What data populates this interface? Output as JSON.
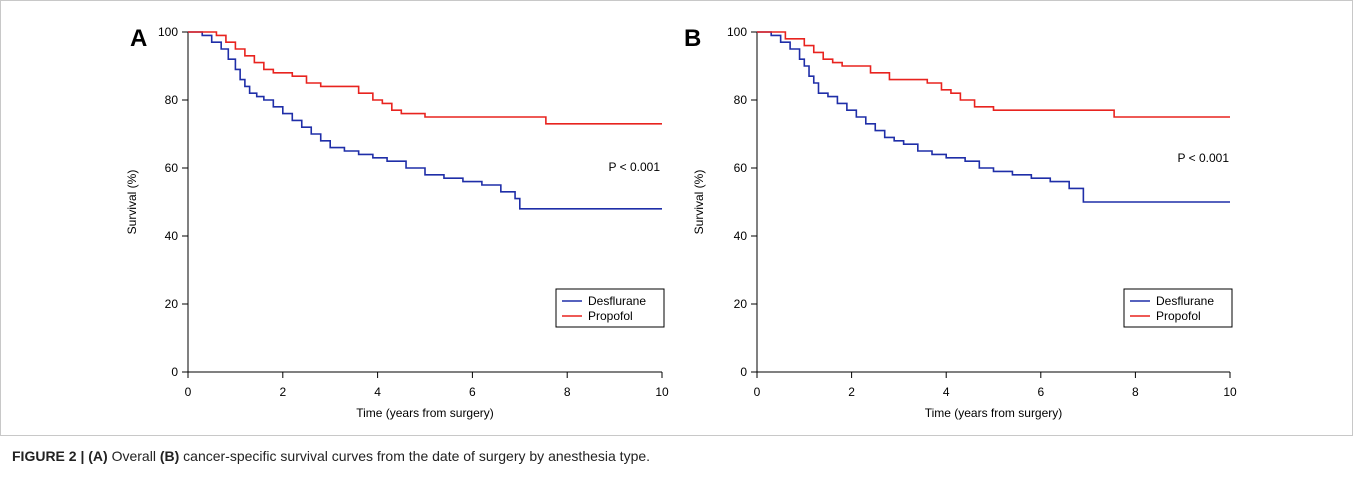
{
  "caption": {
    "prefix": "FIGURE 2 | ",
    "a_tag": "(A)",
    "a_text": " Overall ",
    "b_tag": "(B)",
    "rest": " cancer-specific survival curves from the date of surgery by anesthesia type."
  },
  "colors": {
    "desflurane": "#1f2ea8",
    "propofol": "#e8231f",
    "axis": "#000000"
  },
  "chart_data": [
    {
      "panel": "A",
      "type": "line",
      "step": true,
      "xlabel": "Time (years from surgery)",
      "ylabel": "Survival (%)",
      "xlim": [
        0,
        10
      ],
      "ylim": [
        0,
        100
      ],
      "xticks": [
        0,
        2,
        4,
        6,
        8,
        10
      ],
      "yticks": [
        0,
        20,
        40,
        60,
        80,
        100
      ],
      "annotation": "P < 0.001",
      "legend": "bottom-right",
      "series": [
        {
          "name": "Desflurane",
          "color": "#1f2ea8",
          "x": [
            0,
            0.3,
            0.5,
            0.7,
            0.85,
            1.0,
            1.1,
            1.2,
            1.3,
            1.45,
            1.6,
            1.8,
            2.0,
            2.2,
            2.4,
            2.6,
            2.8,
            3.0,
            3.3,
            3.6,
            3.9,
            4.2,
            4.6,
            5.0,
            5.4,
            5.8,
            6.2,
            6.6,
            6.9,
            7.0,
            10.0
          ],
          "y": [
            100,
            99,
            97,
            95,
            92,
            89,
            86,
            84,
            82,
            81,
            80,
            78,
            76,
            74,
            72,
            70,
            68,
            66,
            65,
            64,
            63,
            62,
            60,
            58,
            57,
            56,
            55,
            53,
            51,
            48,
            48
          ]
        },
        {
          "name": "Propofol",
          "color": "#e8231f",
          "x": [
            0,
            0.6,
            0.8,
            1.0,
            1.2,
            1.4,
            1.6,
            1.8,
            2.2,
            2.5,
            2.8,
            3.0,
            3.6,
            3.9,
            4.1,
            4.3,
            4.5,
            5.0,
            7.55,
            10.0
          ],
          "y": [
            100,
            99,
            97,
            95,
            93,
            91,
            89,
            88,
            87,
            85,
            84,
            84,
            82,
            80,
            79,
            77,
            76,
            75,
            73,
            73
          ]
        }
      ]
    },
    {
      "panel": "B",
      "type": "line",
      "step": true,
      "xlabel": "Time (years from surgery)",
      "ylabel": "Survival (%)",
      "xlim": [
        0,
        10
      ],
      "ylim": [
        0,
        100
      ],
      "xticks": [
        0,
        2,
        4,
        6,
        8,
        10
      ],
      "yticks": [
        0,
        20,
        40,
        60,
        80,
        100
      ],
      "annotation": "P < 0.001",
      "legend": "bottom-right",
      "series": [
        {
          "name": "Desflurane",
          "color": "#1f2ea8",
          "x": [
            0,
            0.3,
            0.5,
            0.7,
            0.9,
            1.0,
            1.1,
            1.2,
            1.3,
            1.5,
            1.7,
            1.9,
            2.1,
            2.3,
            2.5,
            2.7,
            2.9,
            3.1,
            3.4,
            3.7,
            4.0,
            4.4,
            4.7,
            5.0,
            5.4,
            5.8,
            6.2,
            6.6,
            6.9,
            10.0
          ],
          "y": [
            100,
            99,
            97,
            95,
            92,
            90,
            87,
            85,
            82,
            81,
            79,
            77,
            75,
            73,
            71,
            69,
            68,
            67,
            65,
            64,
            63,
            62,
            60,
            59,
            58,
            57,
            56,
            54,
            50,
            50
          ]
        },
        {
          "name": "Propofol",
          "color": "#e8231f",
          "x": [
            0,
            0.6,
            1.0,
            1.2,
            1.4,
            1.6,
            1.8,
            2.4,
            2.8,
            3.6,
            3.9,
            4.1,
            4.3,
            4.6,
            5.0,
            7.55,
            10.0
          ],
          "y": [
            100,
            98,
            96,
            94,
            92,
            91,
            90,
            88,
            86,
            85,
            83,
            82,
            80,
            78,
            77,
            75,
            75
          ]
        }
      ]
    }
  ]
}
